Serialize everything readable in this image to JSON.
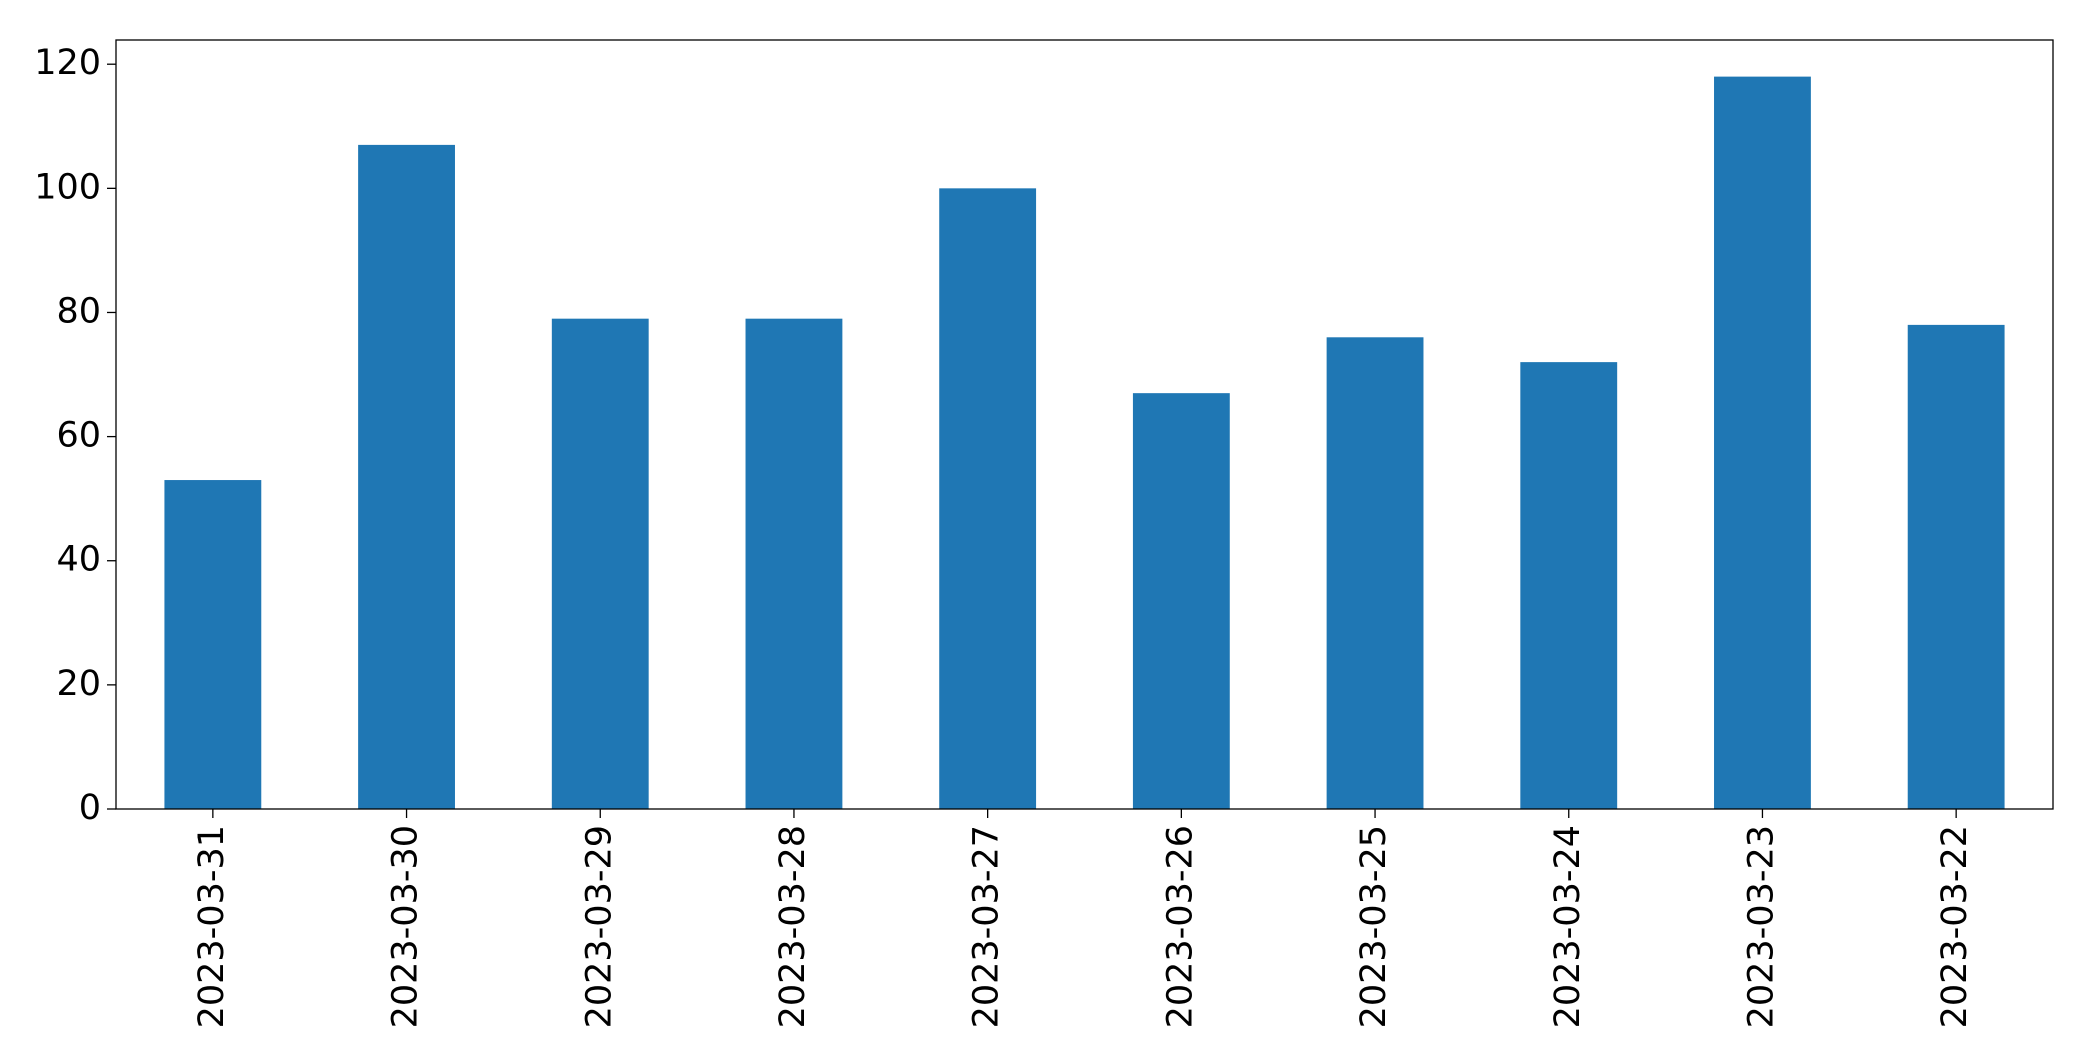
{
  "chart_data": {
    "type": "bar",
    "categories": [
      "2023-03-31",
      "2023-03-30",
      "2023-03-29",
      "2023-03-28",
      "2023-03-27",
      "2023-03-26",
      "2023-03-25",
      "2023-03-24",
      "2023-03-23",
      "2023-03-22"
    ],
    "values": [
      53,
      107,
      79,
      79,
      100,
      67,
      76,
      72,
      118,
      78
    ],
    "color": "#1f77b4",
    "ylim": [
      0,
      123.9
    ],
    "yticks": [
      0,
      20,
      40,
      60,
      80,
      100,
      120
    ],
    "grid": false
  }
}
